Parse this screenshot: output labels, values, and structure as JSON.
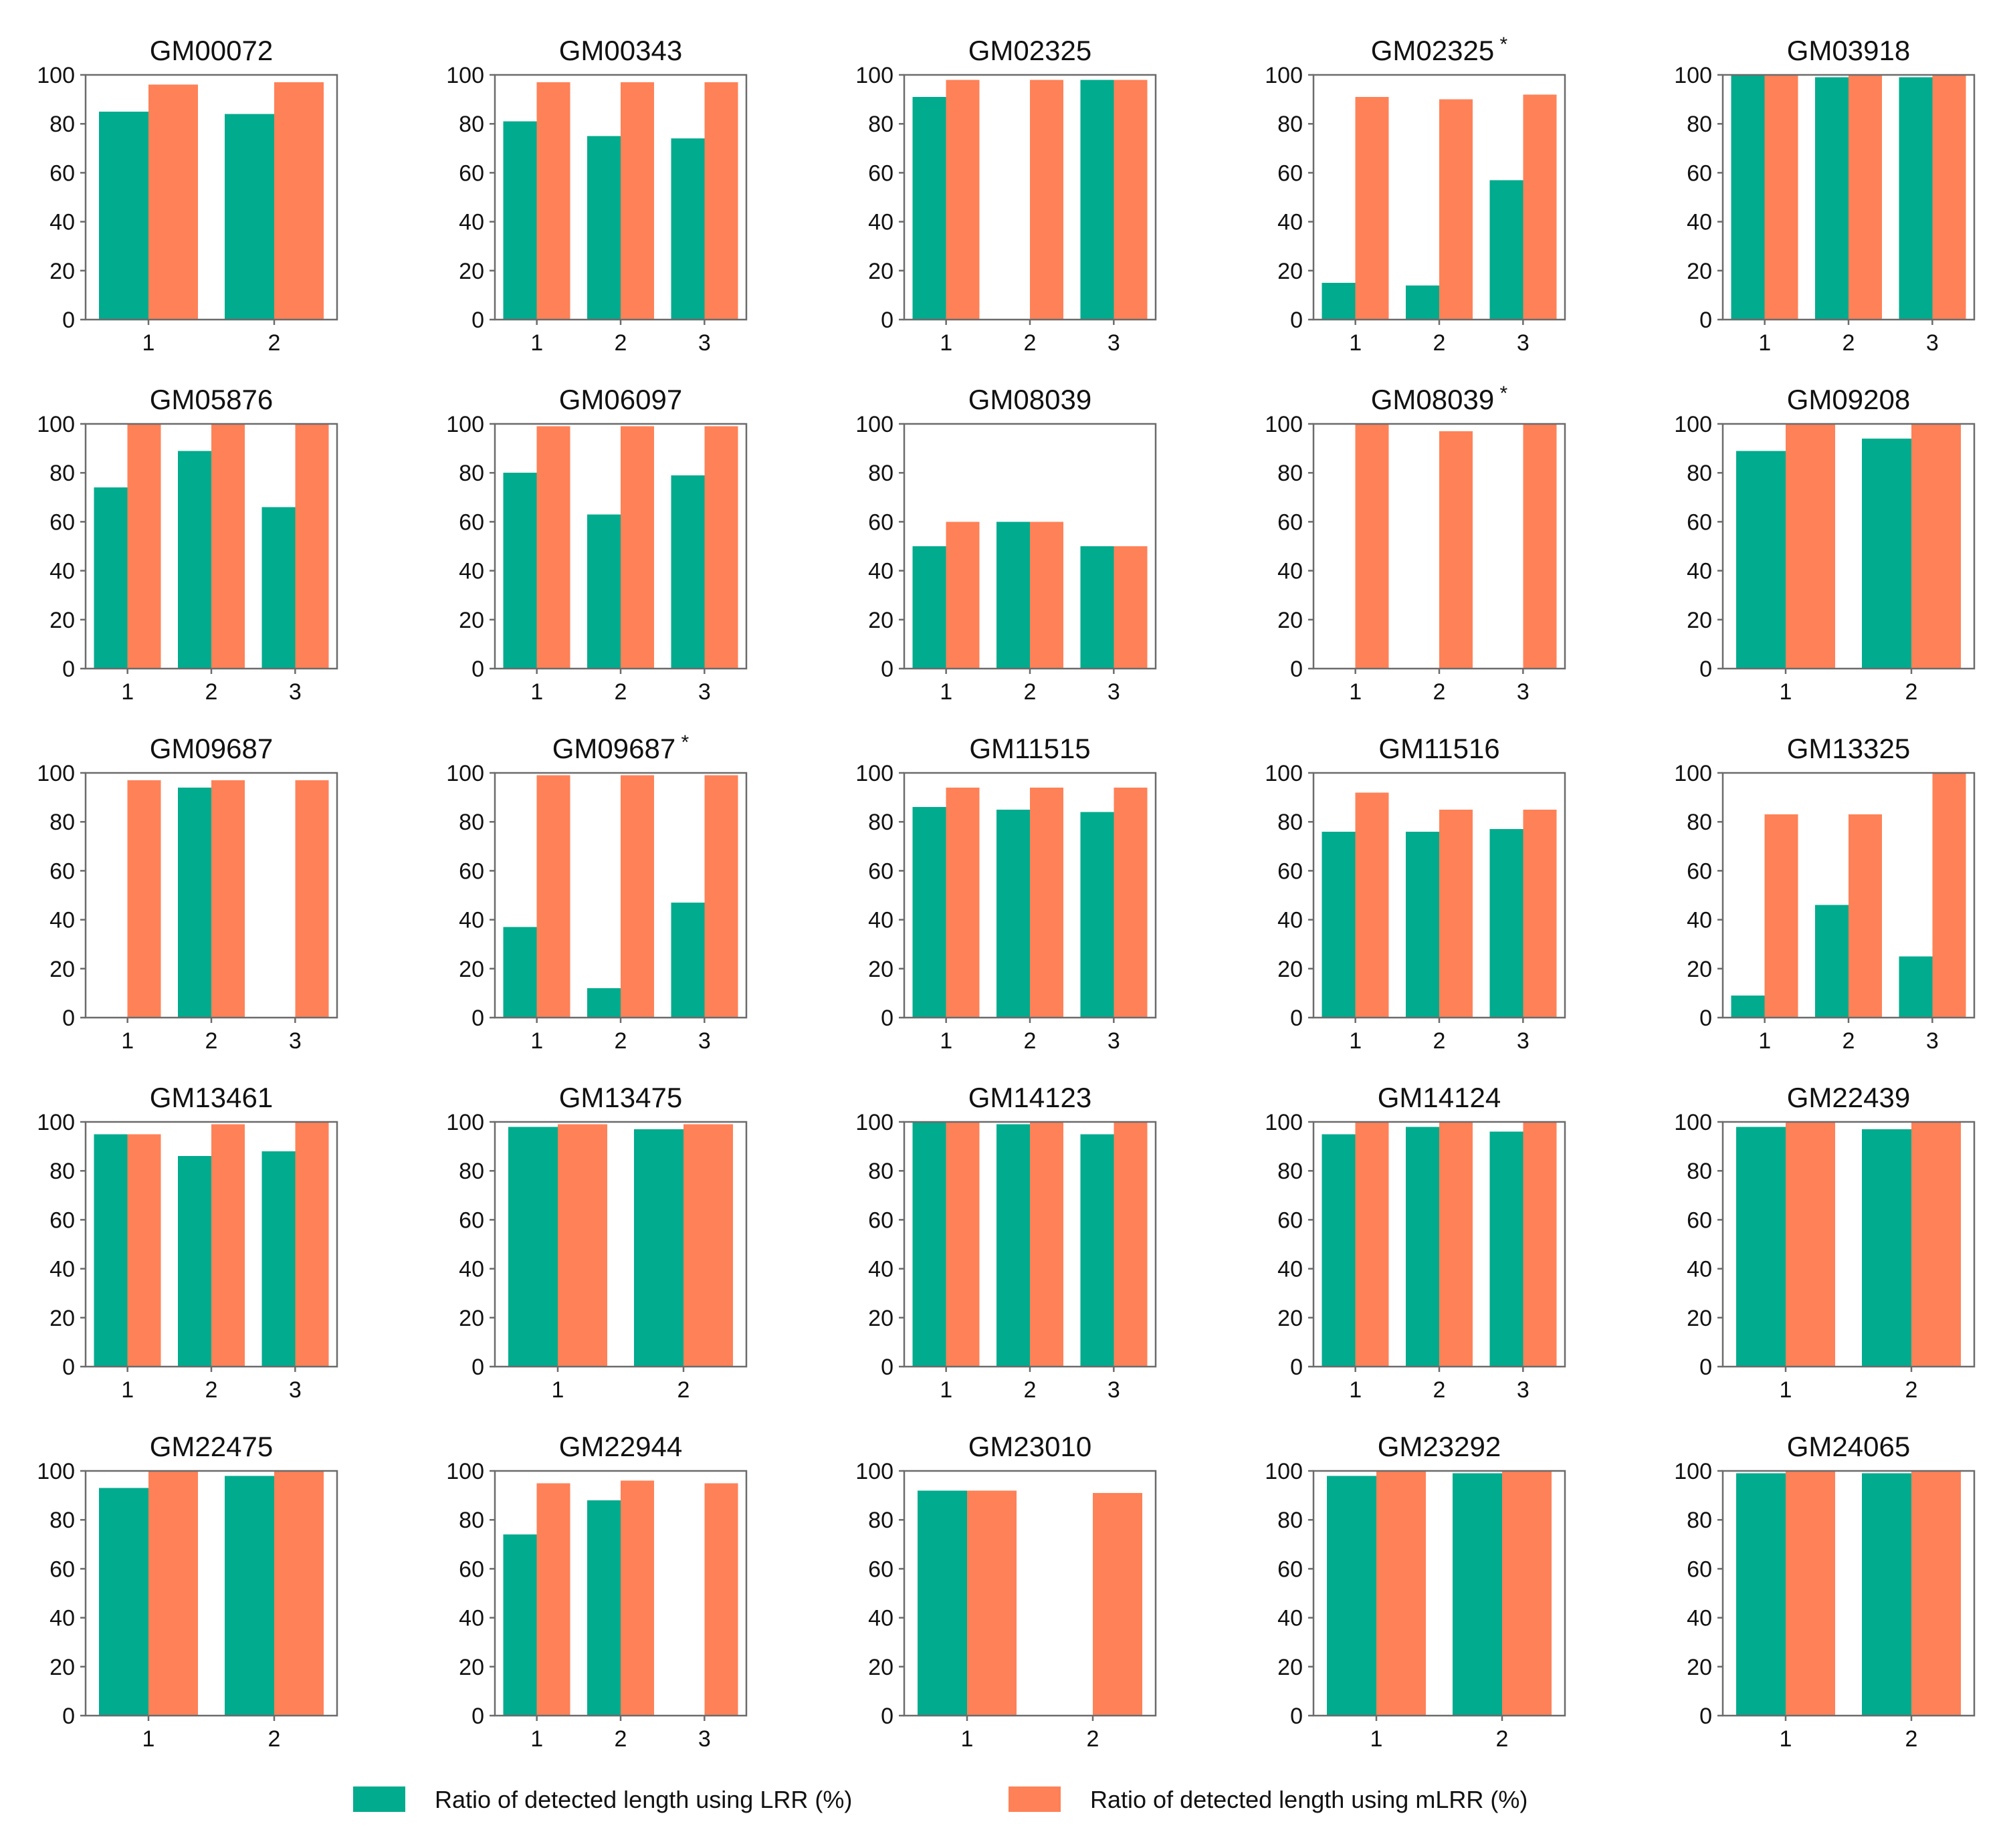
{
  "colors": {
    "lrr": "#00AB8E",
    "mlrr": "#FF8157"
  },
  "legend": [
    {
      "key": "lrr",
      "label": "Ratio of detected length using LRR (%)"
    },
    {
      "key": "mlrr",
      "label": "Ratio of detected length using mLRR (%)"
    }
  ],
  "chart_data": [
    {
      "type": "bar",
      "title": "GM00072",
      "star": "",
      "categories": [
        "1",
        "2"
      ],
      "ylim": [
        0,
        100
      ],
      "yticks": [
        0,
        20,
        40,
        60,
        80,
        100
      ],
      "series": [
        {
          "name": "LRR",
          "values": [
            85,
            84
          ]
        },
        {
          "name": "mLRR",
          "values": [
            96,
            97
          ]
        }
      ]
    },
    {
      "type": "bar",
      "title": "GM00343",
      "star": "",
      "categories": [
        "1",
        "2",
        "3"
      ],
      "ylim": [
        0,
        100
      ],
      "yticks": [
        0,
        20,
        40,
        60,
        80,
        100
      ],
      "series": [
        {
          "name": "LRR",
          "values": [
            81,
            75,
            74
          ]
        },
        {
          "name": "mLRR",
          "values": [
            97,
            97,
            97
          ]
        }
      ]
    },
    {
      "type": "bar",
      "title": "GM02325",
      "star": "",
      "categories": [
        "1",
        "2",
        "3"
      ],
      "ylim": [
        0,
        100
      ],
      "yticks": [
        0,
        20,
        40,
        60,
        80,
        100
      ],
      "series": [
        {
          "name": "LRR",
          "values": [
            91,
            0,
            98
          ]
        },
        {
          "name": "mLRR",
          "values": [
            98,
            98,
            98
          ]
        }
      ]
    },
    {
      "type": "bar",
      "title": "GM02325",
      "star": "*",
      "categories": [
        "1",
        "2",
        "3"
      ],
      "ylim": [
        0,
        100
      ],
      "yticks": [
        0,
        20,
        40,
        60,
        80,
        100
      ],
      "series": [
        {
          "name": "LRR",
          "values": [
            15,
            14,
            57
          ]
        },
        {
          "name": "mLRR",
          "values": [
            91,
            90,
            92
          ]
        }
      ]
    },
    {
      "type": "bar",
      "title": "GM03918",
      "star": "",
      "categories": [
        "1",
        "2",
        "3"
      ],
      "ylim": [
        0,
        100
      ],
      "yticks": [
        0,
        20,
        40,
        60,
        80,
        100
      ],
      "series": [
        {
          "name": "LRR",
          "values": [
            100,
            99,
            99
          ]
        },
        {
          "name": "mLRR",
          "values": [
            100,
            100,
            100
          ]
        }
      ]
    },
    {
      "type": "bar",
      "title": "GM05876",
      "star": "",
      "categories": [
        "1",
        "2",
        "3"
      ],
      "ylim": [
        0,
        100
      ],
      "yticks": [
        0,
        20,
        40,
        60,
        80,
        100
      ],
      "series": [
        {
          "name": "LRR",
          "values": [
            74,
            89,
            66
          ]
        },
        {
          "name": "mLRR",
          "values": [
            100,
            100,
            100
          ]
        }
      ]
    },
    {
      "type": "bar",
      "title": "GM06097",
      "star": "",
      "categories": [
        "1",
        "2",
        "3"
      ],
      "ylim": [
        0,
        100
      ],
      "yticks": [
        0,
        20,
        40,
        60,
        80,
        100
      ],
      "series": [
        {
          "name": "LRR",
          "values": [
            80,
            63,
            79
          ]
        },
        {
          "name": "mLRR",
          "values": [
            99,
            99,
            99
          ]
        }
      ]
    },
    {
      "type": "bar",
      "title": "GM08039",
      "star": "",
      "categories": [
        "1",
        "2",
        "3"
      ],
      "ylim": [
        0,
        100
      ],
      "yticks": [
        0,
        20,
        40,
        60,
        80,
        100
      ],
      "series": [
        {
          "name": "LRR",
          "values": [
            50,
            60,
            50
          ]
        },
        {
          "name": "mLRR",
          "values": [
            60,
            60,
            50
          ]
        }
      ]
    },
    {
      "type": "bar",
      "title": "GM08039",
      "star": "*",
      "categories": [
        "1",
        "2",
        "3"
      ],
      "ylim": [
        0,
        100
      ],
      "yticks": [
        0,
        20,
        40,
        60,
        80,
        100
      ],
      "series": [
        {
          "name": "LRR",
          "values": [
            0,
            0,
            0
          ]
        },
        {
          "name": "mLRR",
          "values": [
            100,
            97,
            100
          ]
        }
      ]
    },
    {
      "type": "bar",
      "title": "GM09208",
      "star": "",
      "categories": [
        "1",
        "2"
      ],
      "ylim": [
        0,
        100
      ],
      "yticks": [
        0,
        20,
        40,
        60,
        80,
        100
      ],
      "series": [
        {
          "name": "LRR",
          "values": [
            89,
            94
          ]
        },
        {
          "name": "mLRR",
          "values": [
            100,
            100
          ]
        }
      ]
    },
    {
      "type": "bar",
      "title": "GM09687",
      "star": "",
      "categories": [
        "1",
        "2",
        "3"
      ],
      "ylim": [
        0,
        100
      ],
      "yticks": [
        0,
        20,
        40,
        60,
        80,
        100
      ],
      "series": [
        {
          "name": "LRR",
          "values": [
            0,
            94,
            0
          ]
        },
        {
          "name": "mLRR",
          "values": [
            97,
            97,
            97
          ]
        }
      ]
    },
    {
      "type": "bar",
      "title": "GM09687",
      "star": "*",
      "categories": [
        "1",
        "2",
        "3"
      ],
      "ylim": [
        0,
        100
      ],
      "yticks": [
        0,
        20,
        40,
        60,
        80,
        100
      ],
      "series": [
        {
          "name": "LRR",
          "values": [
            37,
            12,
            47
          ]
        },
        {
          "name": "mLRR",
          "values": [
            99,
            99,
            99
          ]
        }
      ]
    },
    {
      "type": "bar",
      "title": "GM11515",
      "star": "",
      "categories": [
        "1",
        "2",
        "3"
      ],
      "ylim": [
        0,
        100
      ],
      "yticks": [
        0,
        20,
        40,
        60,
        80,
        100
      ],
      "series": [
        {
          "name": "LRR",
          "values": [
            86,
            85,
            84
          ]
        },
        {
          "name": "mLRR",
          "values": [
            94,
            94,
            94
          ]
        }
      ]
    },
    {
      "type": "bar",
      "title": "GM11516",
      "star": "",
      "categories": [
        "1",
        "2",
        "3"
      ],
      "ylim": [
        0,
        100
      ],
      "yticks": [
        0,
        20,
        40,
        60,
        80,
        100
      ],
      "series": [
        {
          "name": "LRR",
          "values": [
            76,
            76,
            77
          ]
        },
        {
          "name": "mLRR",
          "values": [
            92,
            85,
            85
          ]
        }
      ]
    },
    {
      "type": "bar",
      "title": "GM13325",
      "star": "",
      "categories": [
        "1",
        "2",
        "3"
      ],
      "ylim": [
        0,
        100
      ],
      "yticks": [
        0,
        20,
        40,
        60,
        80,
        100
      ],
      "series": [
        {
          "name": "LRR",
          "values": [
            9,
            46,
            25
          ]
        },
        {
          "name": "mLRR",
          "values": [
            83,
            83,
            100
          ]
        }
      ]
    },
    {
      "type": "bar",
      "title": "GM13461",
      "star": "",
      "categories": [
        "1",
        "2",
        "3"
      ],
      "ylim": [
        0,
        100
      ],
      "yticks": [
        0,
        20,
        40,
        60,
        80,
        100
      ],
      "series": [
        {
          "name": "LRR",
          "values": [
            95,
            86,
            88
          ]
        },
        {
          "name": "mLRR",
          "values": [
            95,
            99,
            100
          ]
        }
      ]
    },
    {
      "type": "bar",
      "title": "GM13475",
      "star": "",
      "categories": [
        "1",
        "2"
      ],
      "ylim": [
        0,
        100
      ],
      "yticks": [
        0,
        20,
        40,
        60,
        80,
        100
      ],
      "series": [
        {
          "name": "LRR",
          "values": [
            98,
            97
          ]
        },
        {
          "name": "mLRR",
          "values": [
            99,
            99
          ]
        }
      ]
    },
    {
      "type": "bar",
      "title": "GM14123",
      "star": "",
      "categories": [
        "1",
        "2",
        "3"
      ],
      "ylim": [
        0,
        100
      ],
      "yticks": [
        0,
        20,
        40,
        60,
        80,
        100
      ],
      "series": [
        {
          "name": "LRR",
          "values": [
            100,
            99,
            95
          ]
        },
        {
          "name": "mLRR",
          "values": [
            100,
            100,
            100
          ]
        }
      ]
    },
    {
      "type": "bar",
      "title": "GM14124",
      "star": "",
      "categories": [
        "1",
        "2",
        "3"
      ],
      "ylim": [
        0,
        100
      ],
      "yticks": [
        0,
        20,
        40,
        60,
        80,
        100
      ],
      "series": [
        {
          "name": "LRR",
          "values": [
            95,
            98,
            96
          ]
        },
        {
          "name": "mLRR",
          "values": [
            100,
            100,
            100
          ]
        }
      ]
    },
    {
      "type": "bar",
      "title": "GM22439",
      "star": "",
      "categories": [
        "1",
        "2"
      ],
      "ylim": [
        0,
        100
      ],
      "yticks": [
        0,
        20,
        40,
        60,
        80,
        100
      ],
      "series": [
        {
          "name": "LRR",
          "values": [
            98,
            97
          ]
        },
        {
          "name": "mLRR",
          "values": [
            100,
            100
          ]
        }
      ]
    },
    {
      "type": "bar",
      "title": "GM22475",
      "star": "",
      "categories": [
        "1",
        "2"
      ],
      "ylim": [
        0,
        100
      ],
      "yticks": [
        0,
        20,
        40,
        60,
        80,
        100
      ],
      "series": [
        {
          "name": "LRR",
          "values": [
            93,
            98
          ]
        },
        {
          "name": "mLRR",
          "values": [
            100,
            100
          ]
        }
      ]
    },
    {
      "type": "bar",
      "title": "GM22944",
      "star": "",
      "categories": [
        "1",
        "2",
        "3"
      ],
      "ylim": [
        0,
        100
      ],
      "yticks": [
        0,
        20,
        40,
        60,
        80,
        100
      ],
      "series": [
        {
          "name": "LRR",
          "values": [
            74,
            88,
            0
          ]
        },
        {
          "name": "mLRR",
          "values": [
            95,
            96,
            95
          ]
        }
      ]
    },
    {
      "type": "bar",
      "title": "GM23010",
      "star": "",
      "categories": [
        "1",
        "2"
      ],
      "ylim": [
        0,
        100
      ],
      "yticks": [
        0,
        20,
        40,
        60,
        80,
        100
      ],
      "series": [
        {
          "name": "LRR",
          "values": [
            92,
            0
          ]
        },
        {
          "name": "mLRR",
          "values": [
            92,
            91
          ]
        }
      ]
    },
    {
      "type": "bar",
      "title": "GM23292",
      "star": "",
      "categories": [
        "1",
        "2"
      ],
      "ylim": [
        0,
        100
      ],
      "yticks": [
        0,
        20,
        40,
        60,
        80,
        100
      ],
      "series": [
        {
          "name": "LRR",
          "values": [
            98,
            99
          ]
        },
        {
          "name": "mLRR",
          "values": [
            100,
            100
          ]
        }
      ]
    },
    {
      "type": "bar",
      "title": "GM24065",
      "star": "",
      "categories": [
        "1",
        "2"
      ],
      "ylim": [
        0,
        100
      ],
      "yticks": [
        0,
        20,
        40,
        60,
        80,
        100
      ],
      "series": [
        {
          "name": "LRR",
          "values": [
            99,
            99
          ]
        },
        {
          "name": "mLRR",
          "values": [
            100,
            100
          ]
        }
      ]
    }
  ]
}
